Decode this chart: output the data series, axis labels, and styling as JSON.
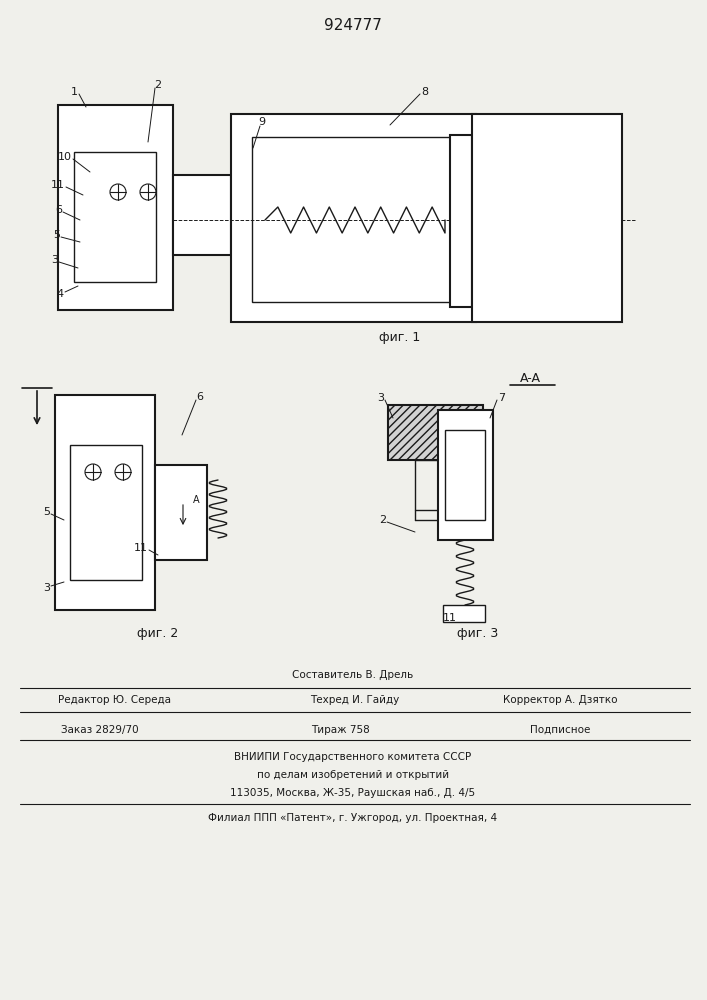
{
  "title": "924777",
  "fig1_label": "фиг. 1",
  "fig2_label": "фиг. 2",
  "fig3_label": "фиг. 3",
  "section_label": "A-A",
  "bg_color": "#f0f0eb",
  "line_color": "#1a1a1a",
  "footer_text": [
    [
      353,
      325,
      "Составитель В. Дрель",
      "center"
    ],
    [
      115,
      300,
      "Редактор Ю. Середа",
      "center"
    ],
    [
      355,
      300,
      "Техред И. Гайду",
      "center"
    ],
    [
      560,
      300,
      "Корректор А. Дзятко",
      "center"
    ],
    [
      100,
      270,
      "Заказ 2829/70",
      "center"
    ],
    [
      340,
      270,
      "Тираж 758",
      "center"
    ],
    [
      560,
      270,
      "Подписное",
      "center"
    ],
    [
      353,
      243,
      "ВНИИПИ Государственного комитета СССР",
      "center"
    ],
    [
      353,
      225,
      "по делам изобретений и открытий",
      "center"
    ],
    [
      353,
      207,
      "113035, Москва, Ж-35, Раушская наб., Д. 4/5",
      "center"
    ],
    [
      353,
      182,
      "Филиал ППП «Патент», г. Ужгород, ул. Проектная, 4",
      "center"
    ]
  ]
}
